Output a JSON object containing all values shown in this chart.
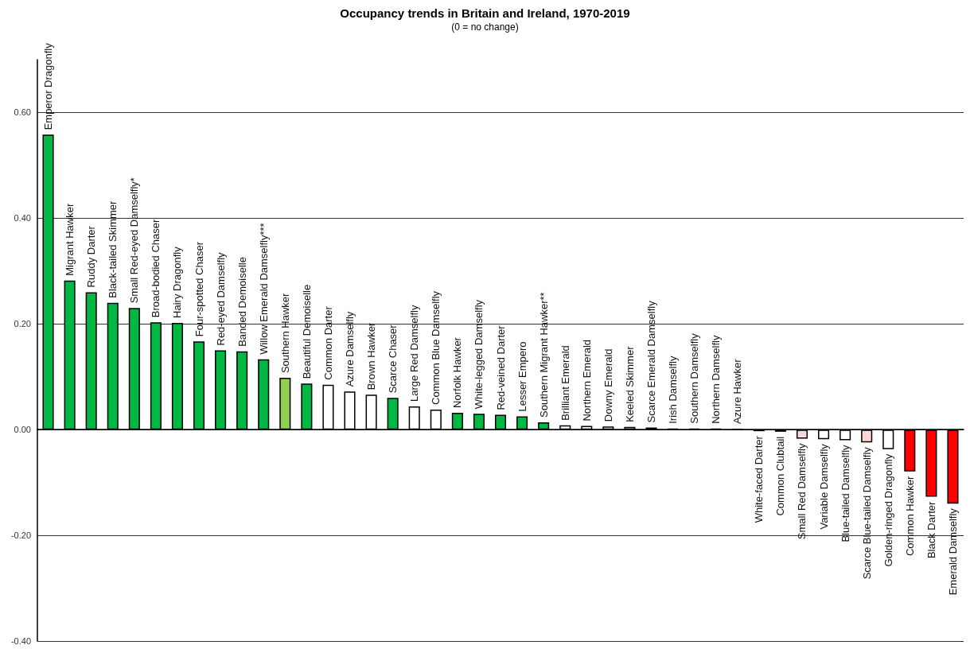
{
  "chart_data": {
    "type": "bar",
    "title": "Occupancy trends in Britain and Ireland, 1970-2019",
    "subtitle": "(0 = no change)",
    "categories": [
      "Emperor Dragonfly",
      "Migrant Hawker",
      "Ruddy Darter",
      "Black-tailed Skimmer",
      "Small Red-eyed Damselfly*",
      "Broad-bodied Chaser",
      "Hairy Dragonfly",
      "Four-spotted Chaser",
      "Red-eyed Damselfly",
      "Banded Demoiselle",
      "Willow Emerald Damselfly***",
      "Southern Hawker",
      "Beautiful Demoiselle",
      "Common Darter",
      "Azure Damselfly",
      "Brown Hawker",
      "Scarce Chaser",
      "Large Red Damselfly",
      "Common Blue Damselfly",
      "Norfolk Hawker",
      "White-legged Damselfly",
      "Red-veined Darter",
      "Lesser Empero",
      "Southern Migrant Hawker**",
      "Brilliant Emerald",
      "Northern Emerald",
      "Downy Emerald",
      "Keeled Skimmer",
      "Scarce Emerald Damselfly",
      "Irish Damselfly",
      "Southern Damselfly",
      "Northern Damselfly",
      "Azure Hawker",
      "White-faced Darter",
      "Common Clubtail",
      "Small Red Damselfly",
      "Variable Damselfly",
      "Blue-tailed Damselfly",
      "Scarce Blue-tailed Damselfly",
      "Golden-ringed Dragonfly",
      "Common Hawker",
      "Black Darter",
      "Emerald Damselfly"
    ],
    "values": [
      0.558,
      0.282,
      0.26,
      0.24,
      0.23,
      0.203,
      0.202,
      0.167,
      0.15,
      0.148,
      0.133,
      0.098,
      0.087,
      0.085,
      0.072,
      0.066,
      0.06,
      0.044,
      0.038,
      0.032,
      0.03,
      0.028,
      0.025,
      0.014,
      0.008,
      0.007,
      0.006,
      0.005,
      0.004,
      0.002,
      0.002,
      0.002,
      0.001,
      -0.003,
      -0.004,
      -0.017,
      -0.018,
      -0.02,
      -0.024,
      -0.037,
      -0.079,
      -0.127,
      -0.14
    ],
    "colors": [
      "#00b843",
      "#00b843",
      "#00b843",
      "#00b843",
      "#00b843",
      "#00b843",
      "#00b843",
      "#00b843",
      "#00b843",
      "#00b843",
      "#00b843",
      "#92d050",
      "#00b843",
      "#ffffff",
      "#ffffff",
      "#ffffff",
      "#00b843",
      "#ffffff",
      "#ffffff",
      "#00b843",
      "#00b843",
      "#00b843",
      "#00b843",
      "#00b843",
      "#ffffff",
      "#ffffff",
      "#ffffff",
      "#ffffff",
      "#ffffff",
      "#ffffff",
      "#ffffff",
      "#ffffff",
      "#ffffff",
      "#ffffff",
      "#ffffff",
      "#ffd5d5",
      "#ffffff",
      "#ffffff",
      "#ffd5d5",
      "#ffffff",
      "#ff0000",
      "#ff0000",
      "#ff0000"
    ],
    "ylim": [
      -0.4,
      0.7
    ],
    "yticks": [
      {
        "value": -0.4,
        "label": "-0.40"
      },
      {
        "value": -0.2,
        "label": "-0.20"
      },
      {
        "value": 0,
        "label": "0.00"
      },
      {
        "value": 0.2,
        "label": "0.20"
      },
      {
        "value": 0.4,
        "label": "0.40"
      },
      {
        "value": 0.6,
        "label": "0.60"
      }
    ],
    "grid": "y"
  }
}
